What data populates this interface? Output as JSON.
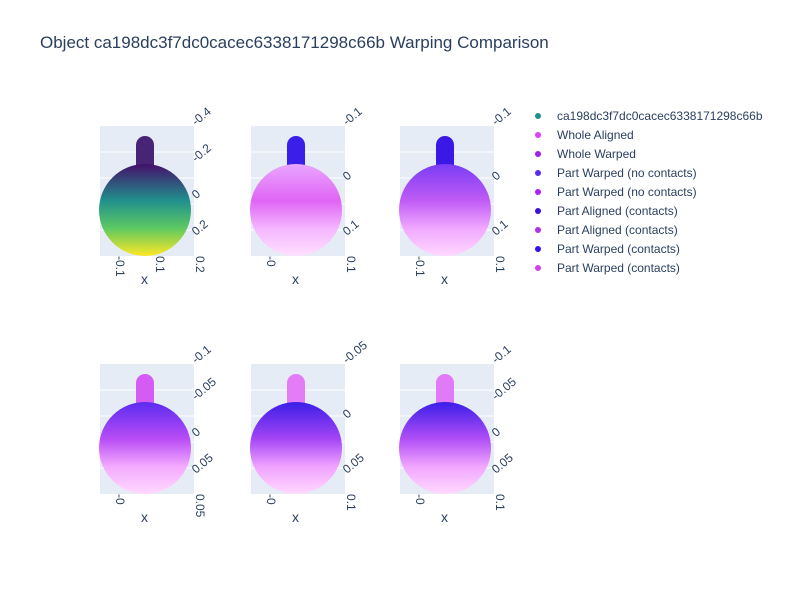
{
  "title": "Object ca198dc3f7dc0cacec6338171298c66b Warping Comparison",
  "legend": [
    {
      "name": "ca198dc3f7dc0cacec6338171298c66b",
      "color": "#1f8f8a"
    },
    {
      "name": "Whole Aligned",
      "color": "#e040fb"
    },
    {
      "name": "Whole Warped",
      "color": "#a020f0"
    },
    {
      "name": "Part Warped (no contacts)",
      "color": "#5a2cf0"
    },
    {
      "name": "Part Warped (no contacts)",
      "color": "#b020f0"
    },
    {
      "name": "Part Aligned (contacts)",
      "color": "#3a10e0"
    },
    {
      "name": "Part Aligned (contacts)",
      "color": "#b030e8"
    },
    {
      "name": "Part Warped (contacts)",
      "color": "#3a10e8"
    },
    {
      "name": "Part Warped (contacts)",
      "color": "#d040f0"
    }
  ],
  "chart_data": [
    {
      "type": "scatter3d",
      "colorscale": "viridis",
      "series": [
        "ca198dc3f7dc0cacec6338171298c66b"
      ],
      "axis_ticks": {
        "z": [
          "-0.4",
          "-0.2",
          "0",
          "0.2"
        ],
        "x": [
          "-0.1",
          "0.1",
          "0.2"
        ]
      },
      "axis_labels": {
        "x": "x"
      }
    },
    {
      "type": "scatter3d",
      "series": [
        "Whole Aligned"
      ],
      "axis_ticks": {
        "z": [
          "-0.1",
          "0",
          "0.1"
        ],
        "x": [
          "-0",
          "0.1"
        ]
      },
      "axis_labels": {
        "x": "x"
      }
    },
    {
      "type": "scatter3d",
      "series": [
        "Whole Warped"
      ],
      "axis_ticks": {
        "z": [
          "-0.1",
          "0",
          "0.1"
        ],
        "x": [
          "-0.1",
          "0.1"
        ]
      },
      "axis_labels": {
        "x": "x"
      }
    },
    {
      "type": "scatter3d",
      "series": [
        "Part Warped (no contacts)",
        "Part Warped (no contacts)"
      ],
      "axis_ticks": {
        "z": [
          "-0.1",
          "-0.05",
          "0",
          "0.05"
        ],
        "x": [
          "-0",
          "0.05"
        ]
      },
      "axis_labels": {
        "x": "x"
      }
    },
    {
      "type": "scatter3d",
      "series": [
        "Part Aligned (contacts)",
        "Part Aligned (contacts)"
      ],
      "axis_ticks": {
        "z": [
          "-0.05",
          "0",
          "0.05"
        ],
        "x": [
          "-0",
          "0.1"
        ]
      },
      "axis_labels": {
        "x": "x"
      }
    },
    {
      "type": "scatter3d",
      "series": [
        "Part Warped (contacts)",
        "Part Warped (contacts)"
      ],
      "axis_ticks": {
        "z": [
          "-0.1",
          "-0.05",
          "0",
          "0.05"
        ],
        "x": [
          "-0",
          "0.1"
        ]
      },
      "axis_labels": {
        "x": "x"
      }
    }
  ]
}
